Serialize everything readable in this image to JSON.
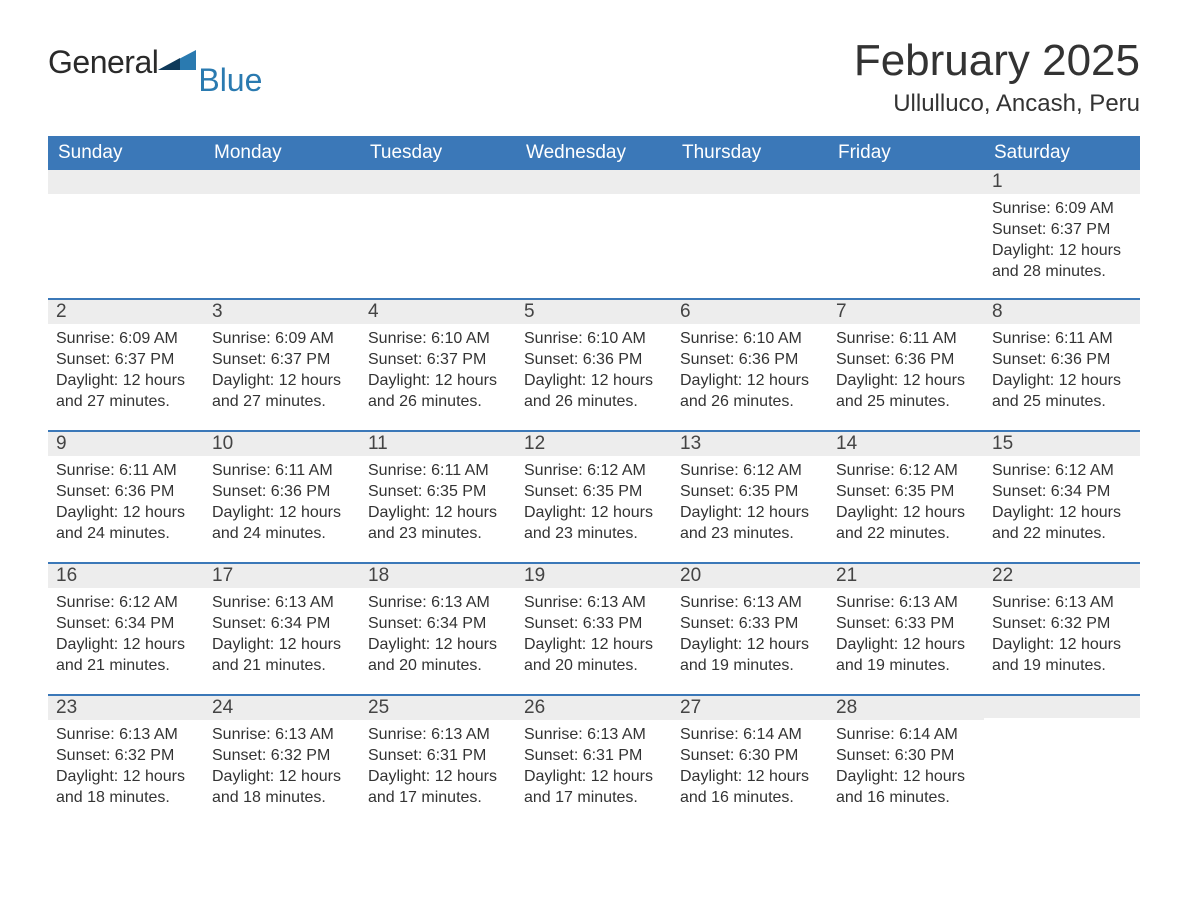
{
  "logo": {
    "word1": "General",
    "word2": "Blue"
  },
  "title": "February 2025",
  "location": "Ullulluco, Ancash, Peru",
  "colors": {
    "header_bg": "#3b78b8",
    "header_text": "#ffffff",
    "strip_bg": "#ededed",
    "strip_border": "#3b78b8",
    "body_bg": "#ffffff",
    "text": "#333333",
    "logo_dark": "#2a2a2a",
    "logo_blue": "#2a7ab0"
  },
  "typography": {
    "title_fontsize": 44,
    "location_fontsize": 24,
    "weekday_fontsize": 19,
    "daynum_fontsize": 19,
    "body_fontsize": 16,
    "font_family": "Arial"
  },
  "weekdays": [
    "Sunday",
    "Monday",
    "Tuesday",
    "Wednesday",
    "Thursday",
    "Friday",
    "Saturday"
  ],
  "weeks": [
    [
      null,
      null,
      null,
      null,
      null,
      null,
      {
        "n": "1",
        "sr": "Sunrise: 6:09 AM",
        "ss": "Sunset: 6:37 PM",
        "dl1": "Daylight: 12 hours",
        "dl2": "and 28 minutes."
      }
    ],
    [
      {
        "n": "2",
        "sr": "Sunrise: 6:09 AM",
        "ss": "Sunset: 6:37 PM",
        "dl1": "Daylight: 12 hours",
        "dl2": "and 27 minutes."
      },
      {
        "n": "3",
        "sr": "Sunrise: 6:09 AM",
        "ss": "Sunset: 6:37 PM",
        "dl1": "Daylight: 12 hours",
        "dl2": "and 27 minutes."
      },
      {
        "n": "4",
        "sr": "Sunrise: 6:10 AM",
        "ss": "Sunset: 6:37 PM",
        "dl1": "Daylight: 12 hours",
        "dl2": "and 26 minutes."
      },
      {
        "n": "5",
        "sr": "Sunrise: 6:10 AM",
        "ss": "Sunset: 6:36 PM",
        "dl1": "Daylight: 12 hours",
        "dl2": "and 26 minutes."
      },
      {
        "n": "6",
        "sr": "Sunrise: 6:10 AM",
        "ss": "Sunset: 6:36 PM",
        "dl1": "Daylight: 12 hours",
        "dl2": "and 26 minutes."
      },
      {
        "n": "7",
        "sr": "Sunrise: 6:11 AM",
        "ss": "Sunset: 6:36 PM",
        "dl1": "Daylight: 12 hours",
        "dl2": "and 25 minutes."
      },
      {
        "n": "8",
        "sr": "Sunrise: 6:11 AM",
        "ss": "Sunset: 6:36 PM",
        "dl1": "Daylight: 12 hours",
        "dl2": "and 25 minutes."
      }
    ],
    [
      {
        "n": "9",
        "sr": "Sunrise: 6:11 AM",
        "ss": "Sunset: 6:36 PM",
        "dl1": "Daylight: 12 hours",
        "dl2": "and 24 minutes."
      },
      {
        "n": "10",
        "sr": "Sunrise: 6:11 AM",
        "ss": "Sunset: 6:36 PM",
        "dl1": "Daylight: 12 hours",
        "dl2": "and 24 minutes."
      },
      {
        "n": "11",
        "sr": "Sunrise: 6:11 AM",
        "ss": "Sunset: 6:35 PM",
        "dl1": "Daylight: 12 hours",
        "dl2": "and 23 minutes."
      },
      {
        "n": "12",
        "sr": "Sunrise: 6:12 AM",
        "ss": "Sunset: 6:35 PM",
        "dl1": "Daylight: 12 hours",
        "dl2": "and 23 minutes."
      },
      {
        "n": "13",
        "sr": "Sunrise: 6:12 AM",
        "ss": "Sunset: 6:35 PM",
        "dl1": "Daylight: 12 hours",
        "dl2": "and 23 minutes."
      },
      {
        "n": "14",
        "sr": "Sunrise: 6:12 AM",
        "ss": "Sunset: 6:35 PM",
        "dl1": "Daylight: 12 hours",
        "dl2": "and 22 minutes."
      },
      {
        "n": "15",
        "sr": "Sunrise: 6:12 AM",
        "ss": "Sunset: 6:34 PM",
        "dl1": "Daylight: 12 hours",
        "dl2": "and 22 minutes."
      }
    ],
    [
      {
        "n": "16",
        "sr": "Sunrise: 6:12 AM",
        "ss": "Sunset: 6:34 PM",
        "dl1": "Daylight: 12 hours",
        "dl2": "and 21 minutes."
      },
      {
        "n": "17",
        "sr": "Sunrise: 6:13 AM",
        "ss": "Sunset: 6:34 PM",
        "dl1": "Daylight: 12 hours",
        "dl2": "and 21 minutes."
      },
      {
        "n": "18",
        "sr": "Sunrise: 6:13 AM",
        "ss": "Sunset: 6:34 PM",
        "dl1": "Daylight: 12 hours",
        "dl2": "and 20 minutes."
      },
      {
        "n": "19",
        "sr": "Sunrise: 6:13 AM",
        "ss": "Sunset: 6:33 PM",
        "dl1": "Daylight: 12 hours",
        "dl2": "and 20 minutes."
      },
      {
        "n": "20",
        "sr": "Sunrise: 6:13 AM",
        "ss": "Sunset: 6:33 PM",
        "dl1": "Daylight: 12 hours",
        "dl2": "and 19 minutes."
      },
      {
        "n": "21",
        "sr": "Sunrise: 6:13 AM",
        "ss": "Sunset: 6:33 PM",
        "dl1": "Daylight: 12 hours",
        "dl2": "and 19 minutes."
      },
      {
        "n": "22",
        "sr": "Sunrise: 6:13 AM",
        "ss": "Sunset: 6:32 PM",
        "dl1": "Daylight: 12 hours",
        "dl2": "and 19 minutes."
      }
    ],
    [
      {
        "n": "23",
        "sr": "Sunrise: 6:13 AM",
        "ss": "Sunset: 6:32 PM",
        "dl1": "Daylight: 12 hours",
        "dl2": "and 18 minutes."
      },
      {
        "n": "24",
        "sr": "Sunrise: 6:13 AM",
        "ss": "Sunset: 6:32 PM",
        "dl1": "Daylight: 12 hours",
        "dl2": "and 18 minutes."
      },
      {
        "n": "25",
        "sr": "Sunrise: 6:13 AM",
        "ss": "Sunset: 6:31 PM",
        "dl1": "Daylight: 12 hours",
        "dl2": "and 17 minutes."
      },
      {
        "n": "26",
        "sr": "Sunrise: 6:13 AM",
        "ss": "Sunset: 6:31 PM",
        "dl1": "Daylight: 12 hours",
        "dl2": "and 17 minutes."
      },
      {
        "n": "27",
        "sr": "Sunrise: 6:14 AM",
        "ss": "Sunset: 6:30 PM",
        "dl1": "Daylight: 12 hours",
        "dl2": "and 16 minutes."
      },
      {
        "n": "28",
        "sr": "Sunrise: 6:14 AM",
        "ss": "Sunset: 6:30 PM",
        "dl1": "Daylight: 12 hours",
        "dl2": "and 16 minutes."
      },
      null
    ]
  ]
}
